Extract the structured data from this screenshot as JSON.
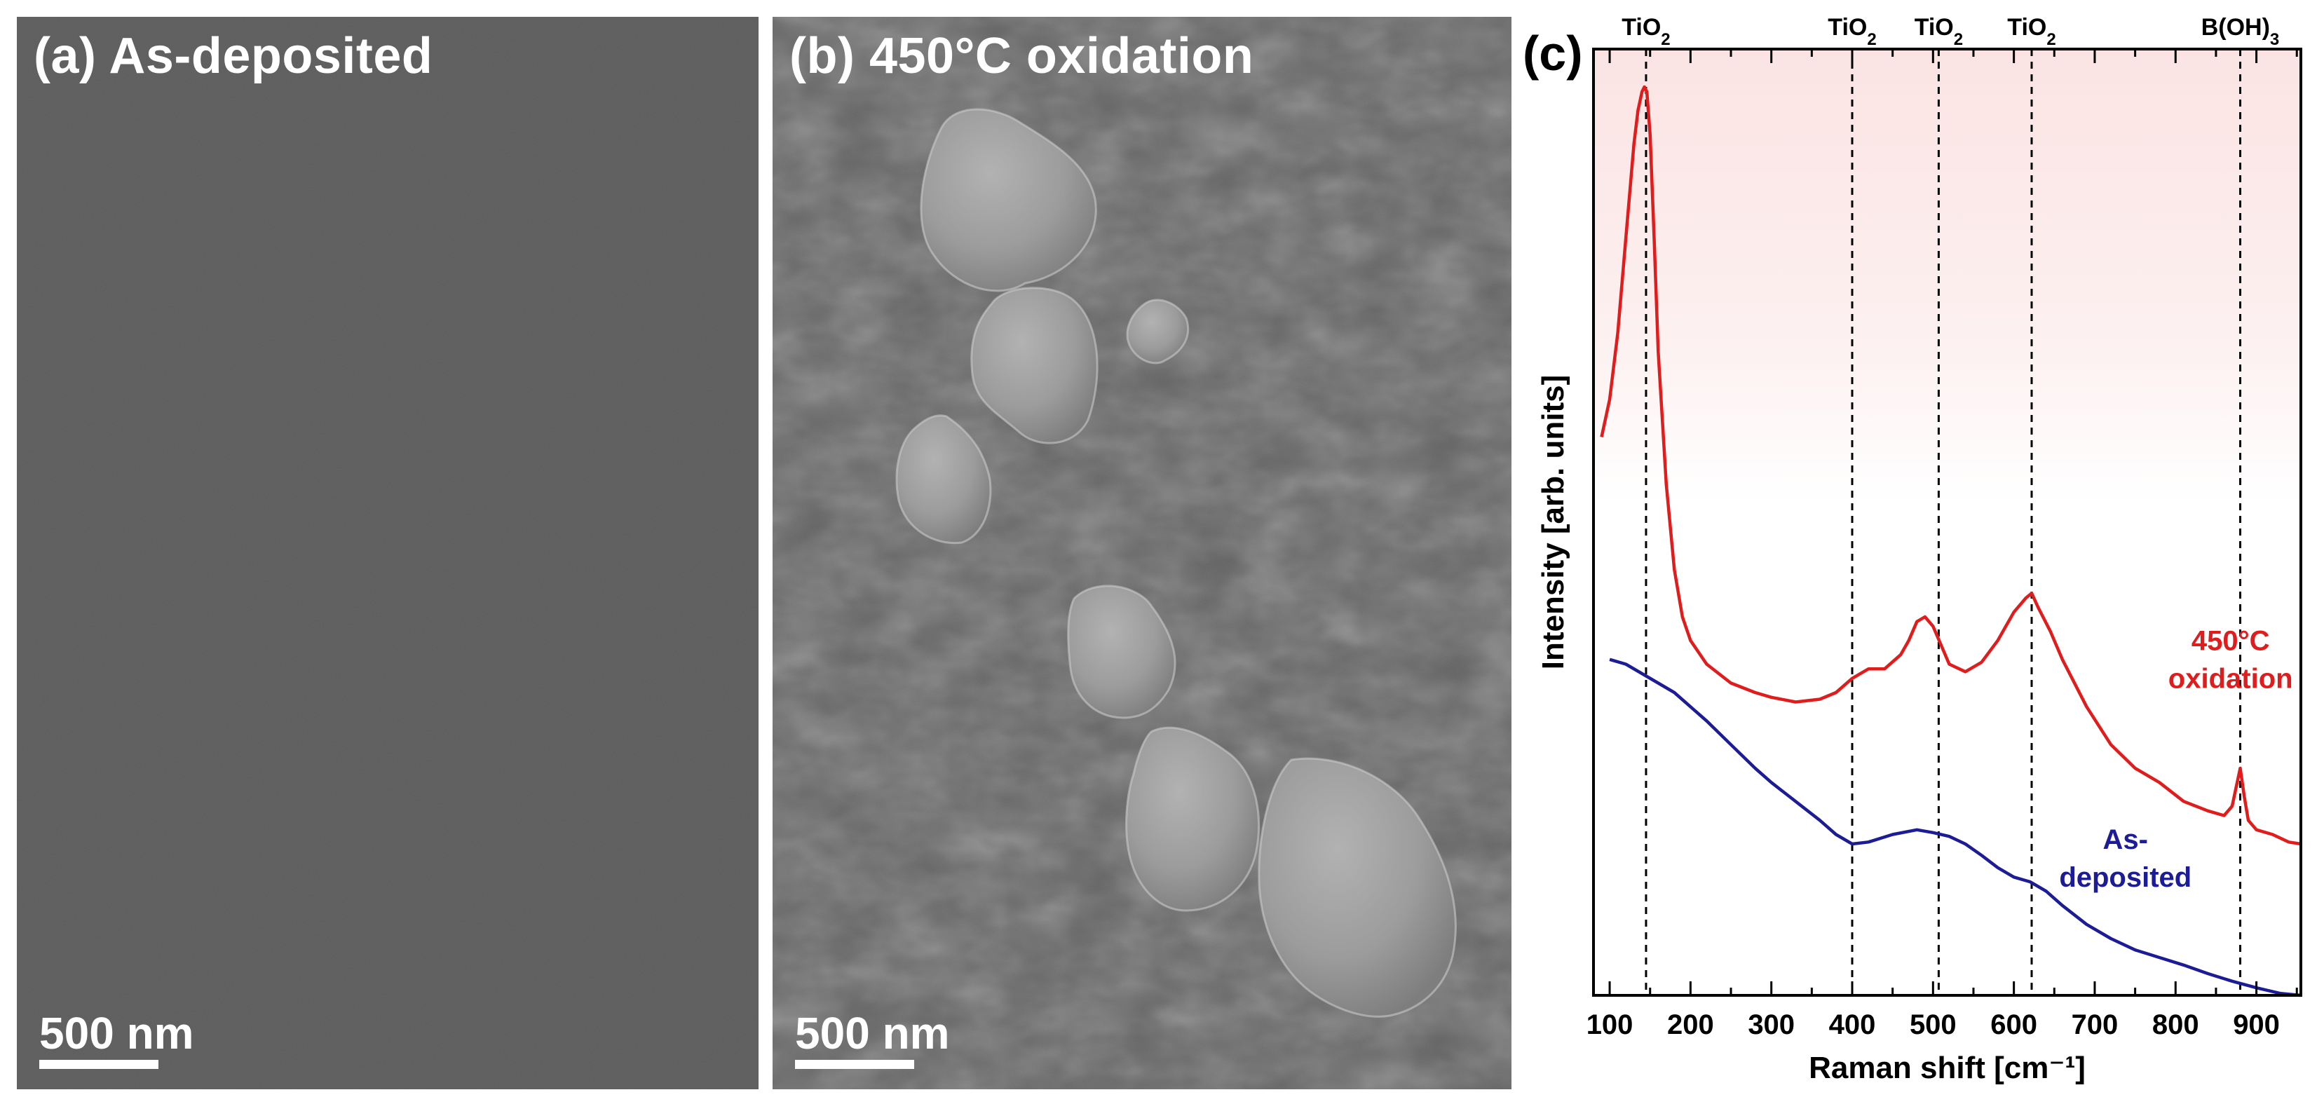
{
  "panel_a": {
    "title": "(a) As-deposited",
    "scale_bar": "500 nm"
  },
  "panel_b": {
    "title": "(b) 450°C oxidation",
    "scale_bar": "500 nm"
  },
  "panel_c": {
    "label": "(c)"
  },
  "chart_data": {
    "type": "line",
    "xlabel": "Raman shift [cm⁻¹]",
    "ylabel": "Intensity [arb. units]",
    "xlim": [
      80,
      955
    ],
    "ylim": [
      0,
      100
    ],
    "x_ticks": [
      100,
      200,
      300,
      400,
      500,
      600,
      700,
      800,
      900
    ],
    "y_ticks_shown": false,
    "grid": false,
    "background": "gradient pink (top) to white (middle)",
    "reference_lines": [
      {
        "x": 145,
        "label": "TiO2"
      },
      {
        "x": 400,
        "label": "TiO2"
      },
      {
        "x": 507,
        "label": "TiO2"
      },
      {
        "x": 622,
        "label": "TiO2"
      },
      {
        "x": 880,
        "label": "B(OH)3"
      }
    ],
    "series": [
      {
        "name": "450°C oxidation",
        "label_lines": [
          "450°C",
          "oxidation"
        ],
        "color": "#e01c1c",
        "x": [
          90,
          100,
          110,
          120,
          130,
          135,
          140,
          143,
          146,
          150,
          155,
          160,
          170,
          180,
          190,
          200,
          220,
          250,
          280,
          300,
          330,
          360,
          380,
          400,
          420,
          440,
          460,
          470,
          480,
          490,
          500,
          510,
          520,
          540,
          560,
          580,
          600,
          615,
          622,
          630,
          645,
          660,
          690,
          720,
          750,
          780,
          810,
          840,
          860,
          870,
          875,
          880,
          885,
          890,
          900,
          920,
          940,
          955
        ],
        "y": [
          59,
          63,
          70,
          80,
          90,
          93.5,
          95.5,
          96,
          95.5,
          91,
          80,
          68,
          54,
          45,
          40,
          37.5,
          35,
          33,
          32,
          31.5,
          31,
          31.3,
          32,
          33.5,
          34.5,
          34.5,
          36,
          37.5,
          39.5,
          40,
          39,
          37,
          35,
          34.2,
          35.2,
          37.5,
          40.5,
          42,
          42.5,
          41,
          38.5,
          35.5,
          30.5,
          26.5,
          24,
          22.5,
          20.5,
          19.5,
          19,
          20,
          22,
          24,
          21,
          18.5,
          17.5,
          17,
          16.2,
          16
        ]
      },
      {
        "name": "As-deposited",
        "label_lines": [
          "As-",
          "deposited"
        ],
        "color": "#1c1c96",
        "x": [
          100,
          120,
          140,
          160,
          180,
          200,
          220,
          250,
          280,
          300,
          330,
          360,
          380,
          400,
          420,
          450,
          480,
          500,
          520,
          540,
          560,
          580,
          600,
          620,
          640,
          660,
          690,
          720,
          750,
          780,
          810,
          840,
          870,
          900,
          930,
          955
        ],
        "y": [
          35.5,
          35,
          34,
          33,
          32,
          30.5,
          29,
          26.5,
          24,
          22.5,
          20.5,
          18.5,
          17,
          16,
          16.2,
          17,
          17.5,
          17.2,
          16.8,
          16,
          14.8,
          13.5,
          12.5,
          12,
          11,
          9.5,
          7.5,
          6,
          4.8,
          4,
          3.2,
          2.3,
          1.5,
          0.8,
          0.2,
          0
        ]
      }
    ]
  }
}
